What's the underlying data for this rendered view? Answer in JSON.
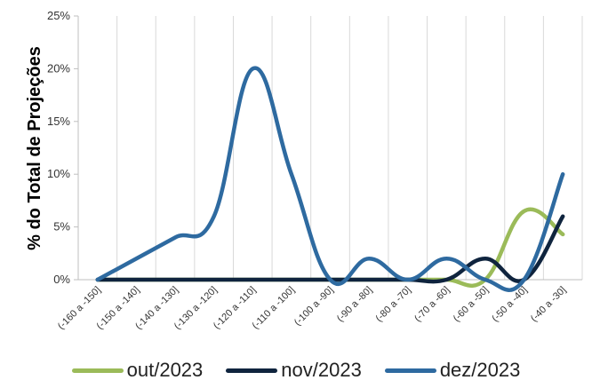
{
  "chart_data": {
    "type": "line",
    "ylabel": "% do Total de Projeções",
    "ylim": [
      0,
      25
    ],
    "yticks": [
      "0%",
      "5%",
      "10%",
      "15%",
      "20%",
      "25%"
    ],
    "grid": "vertical",
    "legend_position": "bottom",
    "categories": [
      "(-160 a -150]",
      "(-150 a -140]",
      "(-140 a -130]",
      "(-130 a -120]",
      "(-120 a -110]",
      "(-110 a -100]",
      "(-100 a -90]",
      "(-90 a -80]",
      "(-80 a -70]",
      "(-70 a -60]",
      "(-60 a -50]",
      "(-50 a -40]",
      "(-40 a -30]"
    ],
    "series": [
      {
        "name": "out/2023",
        "color": "#9bbb59",
        "values": [
          0,
          0,
          0,
          0,
          0,
          0,
          0,
          0,
          0,
          0,
          0,
          6.5,
          4.3
        ]
      },
      {
        "name": "nov/2023",
        "color": "#0f243e",
        "values": [
          0,
          0,
          0,
          0,
          0,
          0,
          0,
          0,
          0,
          0,
          2,
          0,
          6
        ]
      },
      {
        "name": "dez/2023",
        "color": "#2e6aa0",
        "values": [
          0,
          2,
          4,
          6,
          20,
          10,
          0,
          2,
          0,
          2,
          0,
          0,
          10
        ]
      }
    ]
  }
}
